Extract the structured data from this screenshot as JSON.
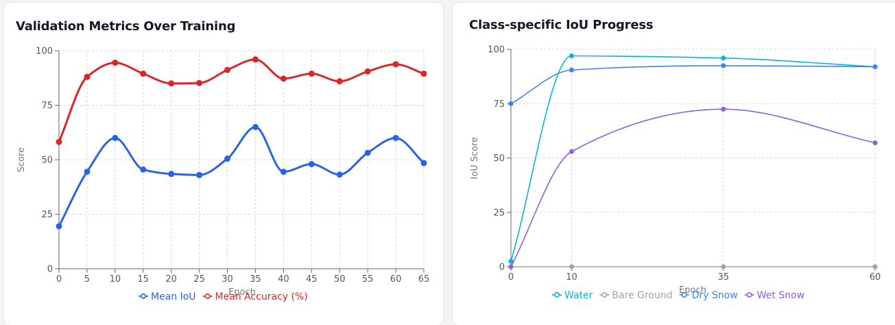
{
  "panels": {
    "left": {
      "title": "Validation Metrics Over Training"
    },
    "right": {
      "title": "Class-specific IoU Progress"
    }
  },
  "chart_data": [
    {
      "type": "line",
      "title": "Validation Metrics Over Training",
      "xlabel": "Epoch",
      "ylabel": "Score",
      "x": [
        0,
        5,
        10,
        15,
        20,
        25,
        30,
        35,
        40,
        45,
        50,
        55,
        60,
        65
      ],
      "x_ticks": [
        "0",
        "5",
        "10",
        "15",
        "20",
        "25",
        "30",
        "35",
        "40",
        "45",
        "50",
        "55",
        "60",
        "65"
      ],
      "ylim": [
        0,
        100
      ],
      "y_ticks": [
        0,
        25,
        50,
        75,
        100
      ],
      "grid": true,
      "legend_position": "bottom",
      "series": [
        {
          "name": "Mean IoU",
          "color": "#2563eb",
          "values": [
            19.5,
            44.5,
            60,
            45.5,
            43.5,
            43,
            50.5,
            65,
            44.5,
            48,
            43.2,
            53.2,
            60,
            48.5
          ]
        },
        {
          "name": "Mean Accuracy (%)",
          "color": "#dc2626",
          "values": [
            58.2,
            88,
            94.5,
            89.5,
            85,
            85.2,
            91.2,
            96,
            87.2,
            89.5,
            86,
            90.5,
            93.8,
            89.5
          ]
        }
      ]
    },
    {
      "type": "line",
      "title": "Class-specific IoU Progress",
      "xlabel": "Epoch",
      "ylabel": "IoU Score",
      "x": [
        0,
        10,
        35,
        60
      ],
      "x_ticks": [
        "0",
        "10",
        "35",
        "60"
      ],
      "ylim": [
        0,
        100
      ],
      "y_ticks": [
        0,
        25,
        50,
        75,
        100
      ],
      "grid": true,
      "legend_position": "bottom",
      "series": [
        {
          "name": "Water",
          "color": "#06b6d4",
          "values": [
            2.5,
            97,
            96,
            92
          ]
        },
        {
          "name": "Bare Ground",
          "color": "#9ca3af",
          "values": [
            0,
            0,
            0,
            0
          ]
        },
        {
          "name": "Dry Snow",
          "color": "#3b82f6",
          "values": [
            75,
            90.5,
            92.5,
            92
          ]
        },
        {
          "name": "Wet Snow",
          "color": "#8b5cf6",
          "values": [
            0,
            53,
            72.5,
            57
          ]
        }
      ]
    }
  ]
}
